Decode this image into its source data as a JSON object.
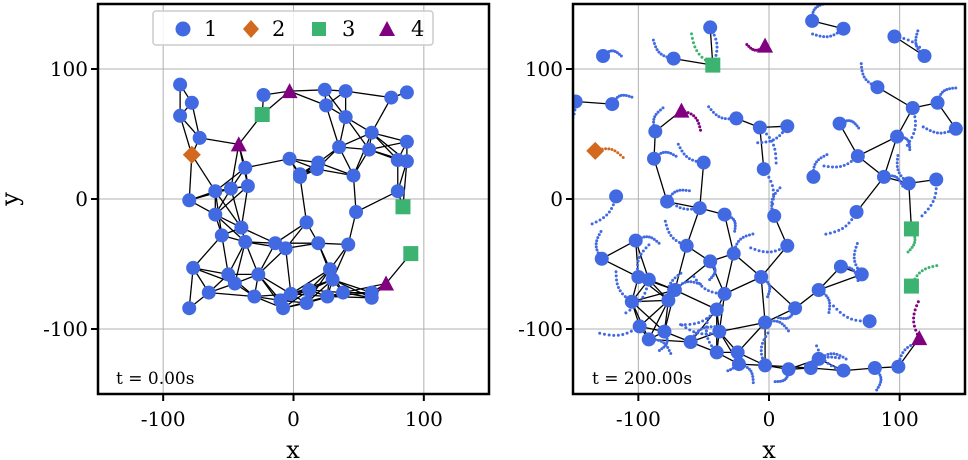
{
  "chart_data": [
    {
      "type": "scatter",
      "xlabel": "x",
      "ylabel": "y",
      "xlim": [
        -150,
        150
      ],
      "ylim": [
        -150,
        150
      ],
      "xticks": [
        -100,
        0,
        100
      ],
      "yticks": [
        -100,
        0,
        100
      ],
      "xtick_labels": [
        "-100",
        "0",
        "100"
      ],
      "ytick_labels": [
        "-100",
        "0",
        "100"
      ],
      "grid": true,
      "legend_placement": "top-center",
      "annotation": "t = 0.00s",
      "series": [
        {
          "name": "1",
          "color": "#4169e1",
          "marker": "circle",
          "points": [
            [
              -87,
              88
            ],
            [
              -78,
              74
            ],
            [
              -87,
              64
            ],
            [
              -72,
              47
            ],
            [
              -23,
              80
            ],
            [
              24,
              84
            ],
            [
              40,
              83
            ],
            [
              75,
              78
            ],
            [
              87,
              82
            ],
            [
              25,
              72
            ],
            [
              40,
              63
            ],
            [
              60,
              51
            ],
            [
              87,
              44
            ],
            [
              -3,
              31
            ],
            [
              5,
              17
            ],
            [
              19,
              28
            ],
            [
              35,
              40
            ],
            [
              58,
              38
            ],
            [
              80,
              30
            ],
            [
              87,
              29
            ],
            [
              80,
              6
            ],
            [
              -37,
              24
            ],
            [
              -60,
              6
            ],
            [
              -48,
              8
            ],
            [
              -35,
              10
            ],
            [
              -80,
              -1
            ],
            [
              -60,
              -12
            ],
            [
              -40,
              -22
            ],
            [
              10,
              -18
            ],
            [
              48,
              -10
            ],
            [
              -55,
              -28
            ],
            [
              -37,
              -33
            ],
            [
              -14,
              -34
            ],
            [
              -6,
              -38
            ],
            [
              19,
              -34
            ],
            [
              42,
              -35
            ],
            [
              -77,
              -53
            ],
            [
              -50,
              -58
            ],
            [
              -27,
              -58
            ],
            [
              28,
              -54
            ],
            [
              -65,
              -72
            ],
            [
              -45,
              -65
            ],
            [
              -30,
              -75
            ],
            [
              -10,
              -78
            ],
            [
              -2,
              -73
            ],
            [
              10,
              -80
            ],
            [
              26,
              -75
            ],
            [
              38,
              -72
            ],
            [
              60,
              -72
            ],
            [
              60,
              -76
            ],
            [
              -80,
              -84
            ],
            [
              -8,
              -84
            ],
            [
              12,
              -70
            ],
            [
              30,
              -62
            ],
            [
              5,
              19
            ],
            [
              18,
              23
            ],
            [
              46,
              18
            ]
          ]
        },
        {
          "name": "2",
          "color": "#d2691e",
          "marker": "diamond",
          "points": [
            [
              -78,
              34
            ]
          ]
        },
        {
          "name": "3",
          "color": "#3cb371",
          "marker": "square",
          "points": [
            [
              -24,
              65
            ],
            [
              84,
              -6
            ],
            [
              90,
              -42
            ]
          ]
        },
        {
          "name": "4",
          "color": "#800080",
          "marker": "triangle",
          "points": [
            [
              -3,
              83
            ],
            [
              -42,
              42
            ],
            [
              71,
              -65
            ]
          ]
        }
      ]
    },
    {
      "type": "scatter",
      "xlabel": "x",
      "ylabel": "",
      "xlim": [
        -150,
        150
      ],
      "ylim": [
        -150,
        150
      ],
      "xticks": [
        -100,
        0,
        100
      ],
      "yticks": [
        -100,
        0,
        100
      ],
      "xtick_labels": [
        "-100",
        "0",
        "100"
      ],
      "ytick_labels": [
        "-100",
        "0",
        "100"
      ],
      "grid": true,
      "annotation": "t = 200.00s",
      "series": [
        {
          "name": "1",
          "color": "#4169e1",
          "marker": "circle",
          "points": [
            [
              -127,
              110
            ],
            [
              -73,
              108
            ],
            [
              -45,
              132
            ],
            [
              33,
              137
            ],
            [
              57,
              131
            ],
            [
              96,
              125
            ],
            [
              119,
              110
            ],
            [
              -148,
              75
            ],
            [
              -120,
              73
            ],
            [
              -25,
              62
            ],
            [
              -7,
              55
            ],
            [
              -87,
              52
            ],
            [
              14,
              56
            ],
            [
              54,
              58
            ],
            [
              83,
              86
            ],
            [
              110,
              70
            ],
            [
              129,
              74
            ],
            [
              143,
              54
            ],
            [
              98,
              48
            ],
            [
              -128,
              -46
            ],
            [
              -117,
              2
            ],
            [
              -88,
              31
            ],
            [
              -50,
              28
            ],
            [
              -4,
              23
            ],
            [
              34,
              17
            ],
            [
              68,
              33
            ],
            [
              88,
              17
            ],
            [
              107,
              12
            ],
            [
              128,
              15
            ],
            [
              -78,
              -2
            ],
            [
              -53,
              -7
            ],
            [
              -34,
              -12
            ],
            [
              4,
              -13
            ],
            [
              67,
              -10
            ],
            [
              -102,
              -32
            ],
            [
              -63,
              -36
            ],
            [
              -45,
              -48
            ],
            [
              -27,
              -42
            ],
            [
              14,
              -36
            ],
            [
              55,
              -52
            ],
            [
              71,
              -58
            ],
            [
              -92,
              -62
            ],
            [
              -72,
              -70
            ],
            [
              -34,
              -73
            ],
            [
              -6,
              -60
            ],
            [
              -77,
              -78
            ],
            [
              -40,
              -85
            ],
            [
              -3,
              -95
            ],
            [
              -105,
              -79
            ],
            [
              -80,
              -102
            ],
            [
              -60,
              -110
            ],
            [
              -38,
              -102
            ],
            [
              -23,
              -127
            ],
            [
              -3,
              -128
            ],
            [
              15,
              -131
            ],
            [
              38,
              -123
            ],
            [
              57,
              -132
            ],
            [
              81,
              -130
            ],
            [
              99,
              -129
            ],
            [
              -99,
              -98
            ],
            [
              -92,
              -108
            ],
            [
              -40,
              -118
            ],
            [
              -24,
              -118
            ],
            [
              32,
              -130
            ],
            [
              77,
              -94
            ],
            [
              38,
              -70
            ],
            [
              -100,
              -60
            ],
            [
              20,
              -84
            ]
          ]
        },
        {
          "name": "2",
          "color": "#d2691e",
          "marker": "diamond",
          "points": [
            [
              -133,
              37
            ]
          ]
        },
        {
          "name": "3",
          "color": "#3cb371",
          "marker": "square",
          "points": [
            [
              -43,
              103
            ],
            [
              109,
              -23
            ],
            [
              109,
              -67
            ]
          ]
        },
        {
          "name": "4",
          "color": "#800080",
          "marker": "triangle",
          "points": [
            [
              -3,
              118
            ],
            [
              -67,
              68
            ],
            [
              115,
              -107
            ]
          ]
        }
      ]
    }
  ]
}
